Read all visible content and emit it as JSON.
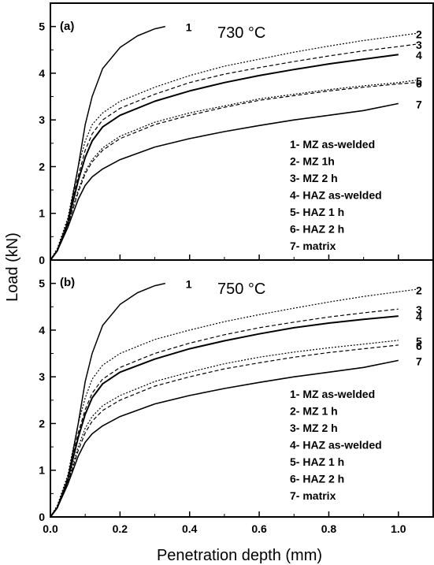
{
  "figure": {
    "ylabel": "Load (kN)",
    "xlabel": "Penetration depth (mm)",
    "x_ticks": [
      "0.0",
      "0.2",
      "0.4",
      "0.6",
      "0.8",
      "1.0"
    ],
    "y_ticks": [
      "0",
      "1",
      "2",
      "3",
      "4",
      "5"
    ]
  },
  "chart_data": [
    {
      "type": "line",
      "panel": "(a)",
      "temperature": "730 °C",
      "xlabel": "Penetration depth (mm)",
      "ylabel": "Load (kN)",
      "xlim": [
        0,
        1.1
      ],
      "ylim": [
        0,
        5.5
      ],
      "grid": false,
      "legend_placement": "right",
      "legend": [
        "1- MZ as-welded",
        "2- MZ 1h",
        "3- MZ 2 h",
        "4- HAZ as-welded",
        "5- HAZ 1 h",
        "6- HAZ 2 h",
        "7- matrix"
      ],
      "series": [
        {
          "name": "1",
          "x": [
            0,
            0.02,
            0.05,
            0.08,
            0.1,
            0.12,
            0.15,
            0.2,
            0.25,
            0.3,
            0.33
          ],
          "y": [
            0,
            0.2,
            0.8,
            2.0,
            2.9,
            3.5,
            4.1,
            4.55,
            4.8,
            4.95,
            5.0
          ]
        },
        {
          "name": "2",
          "x": [
            0,
            0.02,
            0.05,
            0.08,
            0.1,
            0.12,
            0.15,
            0.2,
            0.3,
            0.4,
            0.5,
            0.6,
            0.7,
            0.8,
            0.9,
            1.0,
            1.05
          ],
          "y": [
            0,
            0.25,
            0.9,
            2.0,
            2.55,
            2.9,
            3.15,
            3.4,
            3.7,
            3.95,
            4.15,
            4.3,
            4.45,
            4.58,
            4.7,
            4.8,
            4.85
          ]
        },
        {
          "name": "3",
          "x": [
            0,
            0.02,
            0.05,
            0.08,
            0.1,
            0.12,
            0.15,
            0.2,
            0.3,
            0.4,
            0.5,
            0.6,
            0.7,
            0.8,
            0.9,
            1.0,
            1.05
          ],
          "y": [
            0,
            0.2,
            0.85,
            1.8,
            2.35,
            2.7,
            3.0,
            3.25,
            3.55,
            3.8,
            3.98,
            4.12,
            4.25,
            4.37,
            4.48,
            4.57,
            4.62
          ]
        },
        {
          "name": "4",
          "x": [
            0,
            0.02,
            0.05,
            0.08,
            0.1,
            0.12,
            0.15,
            0.2,
            0.3,
            0.4,
            0.5,
            0.6,
            0.7,
            0.8,
            0.9,
            1.0
          ],
          "y": [
            0,
            0.2,
            0.8,
            1.7,
            2.2,
            2.55,
            2.85,
            3.1,
            3.4,
            3.62,
            3.8,
            3.95,
            4.08,
            4.2,
            4.3,
            4.4
          ]
        },
        {
          "name": "5",
          "x": [
            0,
            0.02,
            0.05,
            0.08,
            0.1,
            0.12,
            0.15,
            0.2,
            0.3,
            0.4,
            0.5,
            0.6,
            0.7,
            0.8,
            0.9,
            1.0,
            1.05
          ],
          "y": [
            0,
            0.2,
            0.75,
            1.5,
            1.9,
            2.15,
            2.4,
            2.65,
            2.95,
            3.15,
            3.3,
            3.45,
            3.55,
            3.65,
            3.73,
            3.8,
            3.85
          ]
        },
        {
          "name": "6",
          "x": [
            0,
            0.02,
            0.05,
            0.08,
            0.1,
            0.12,
            0.15,
            0.2,
            0.3,
            0.4,
            0.5,
            0.6,
            0.7,
            0.8,
            0.9,
            1.0,
            1.05
          ],
          "y": [
            0,
            0.2,
            0.75,
            1.45,
            1.85,
            2.1,
            2.35,
            2.6,
            2.9,
            3.1,
            3.27,
            3.42,
            3.52,
            3.62,
            3.7,
            3.77,
            3.8
          ]
        },
        {
          "name": "7",
          "x": [
            0,
            0.02,
            0.05,
            0.08,
            0.1,
            0.12,
            0.15,
            0.2,
            0.3,
            0.4,
            0.5,
            0.6,
            0.7,
            0.8,
            0.9,
            1.0
          ],
          "y": [
            0,
            0.2,
            0.7,
            1.3,
            1.6,
            1.78,
            1.95,
            2.15,
            2.42,
            2.6,
            2.75,
            2.88,
            3.0,
            3.1,
            3.2,
            3.35
          ]
        }
      ]
    },
    {
      "type": "line",
      "panel": "(b)",
      "temperature": "750 °C",
      "xlabel": "Penetration depth (mm)",
      "ylabel": "Load (kN)",
      "xlim": [
        0,
        1.1
      ],
      "ylim": [
        0,
        5.5
      ],
      "grid": false,
      "legend_placement": "right",
      "legend": [
        "1- MZ as-welded",
        "2- MZ 1 h",
        "3- MZ 2 h",
        "4- HAZ as-welded",
        "5- HAZ 1 h",
        "6- HAZ 2 h",
        "7- matrix"
      ],
      "series": [
        {
          "name": "1",
          "x": [
            0,
            0.02,
            0.05,
            0.08,
            0.1,
            0.12,
            0.15,
            0.2,
            0.25,
            0.3,
            0.33
          ],
          "y": [
            0,
            0.2,
            0.8,
            2.0,
            2.9,
            3.5,
            4.1,
            4.55,
            4.8,
            4.95,
            5.0
          ]
        },
        {
          "name": "2",
          "x": [
            0,
            0.02,
            0.05,
            0.08,
            0.1,
            0.12,
            0.15,
            0.2,
            0.3,
            0.4,
            0.5,
            0.6,
            0.7,
            0.8,
            0.9,
            1.0,
            1.05
          ],
          "y": [
            0,
            0.25,
            0.9,
            2.0,
            2.55,
            2.95,
            3.25,
            3.5,
            3.8,
            4.0,
            4.18,
            4.33,
            4.47,
            4.6,
            4.72,
            4.82,
            4.87
          ]
        },
        {
          "name": "3",
          "x": [
            0,
            0.02,
            0.05,
            0.08,
            0.1,
            0.12,
            0.15,
            0.2,
            0.3,
            0.4,
            0.5,
            0.6,
            0.7,
            0.8,
            0.9,
            1.0
          ],
          "y": [
            0,
            0.2,
            0.85,
            1.8,
            2.3,
            2.65,
            2.95,
            3.2,
            3.5,
            3.72,
            3.9,
            4.05,
            4.17,
            4.28,
            4.37,
            4.45
          ]
        },
        {
          "name": "4",
          "x": [
            0,
            0.02,
            0.05,
            0.08,
            0.1,
            0.12,
            0.15,
            0.2,
            0.3,
            0.4,
            0.5,
            0.6,
            0.7,
            0.8,
            0.9,
            1.0
          ],
          "y": [
            0,
            0.2,
            0.8,
            1.7,
            2.2,
            2.55,
            2.85,
            3.1,
            3.38,
            3.6,
            3.77,
            3.92,
            4.05,
            4.15,
            4.23,
            4.3
          ]
        },
        {
          "name": "5",
          "x": [
            0,
            0.02,
            0.05,
            0.08,
            0.1,
            0.12,
            0.15,
            0.2,
            0.3,
            0.4,
            0.5,
            0.6,
            0.7,
            0.8,
            0.9,
            1.0
          ],
          "y": [
            0,
            0.2,
            0.75,
            1.5,
            1.9,
            2.15,
            2.38,
            2.6,
            2.9,
            3.1,
            3.28,
            3.42,
            3.53,
            3.62,
            3.7,
            3.78
          ]
        },
        {
          "name": "6",
          "x": [
            0,
            0.02,
            0.05,
            0.08,
            0.1,
            0.12,
            0.15,
            0.2,
            0.3,
            0.4,
            0.5,
            0.6,
            0.7,
            0.8,
            0.9,
            1.0
          ],
          "y": [
            0,
            0.2,
            0.72,
            1.42,
            1.8,
            2.05,
            2.28,
            2.5,
            2.8,
            3.0,
            3.17,
            3.3,
            3.42,
            3.52,
            3.6,
            3.68
          ]
        },
        {
          "name": "7",
          "x": [
            0,
            0.02,
            0.05,
            0.08,
            0.1,
            0.12,
            0.15,
            0.2,
            0.3,
            0.4,
            0.5,
            0.6,
            0.7,
            0.8,
            0.9,
            1.0
          ],
          "y": [
            0,
            0.2,
            0.7,
            1.3,
            1.6,
            1.78,
            1.95,
            2.15,
            2.42,
            2.6,
            2.75,
            2.88,
            3.0,
            3.1,
            3.2,
            3.35
          ]
        }
      ]
    }
  ]
}
